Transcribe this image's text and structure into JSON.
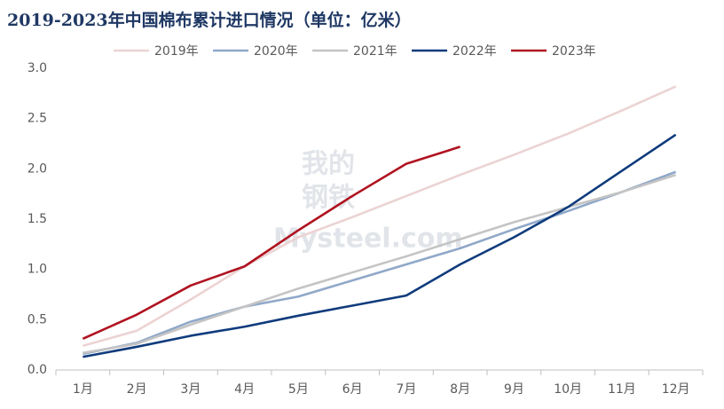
{
  "chart_data": {
    "type": "line",
    "title": "2019-2023年中国棉布累计进口情况（单位：亿米）",
    "watermark": [
      "我的",
      "钢铁",
      "Mysteel.com"
    ],
    "categories": [
      "1月",
      "2月",
      "3月",
      "4月",
      "5月",
      "6月",
      "7月",
      "8月",
      "9月",
      "10月",
      "11月",
      "12月"
    ],
    "series": [
      {
        "name": "2019年",
        "color": "#ecd3d3",
        "values": [
          0.24,
          0.39,
          0.7,
          1.03,
          1.32,
          1.52,
          1.73,
          1.94,
          2.14,
          2.35,
          2.58,
          2.82
        ]
      },
      {
        "name": "2020年",
        "color": "#8fa8c9",
        "values": [
          0.16,
          0.27,
          0.48,
          0.63,
          0.73,
          0.89,
          1.05,
          1.21,
          1.4,
          1.58,
          1.77,
          1.97
        ]
      },
      {
        "name": "2021年",
        "color": "#c4c4c4",
        "values": [
          0.17,
          0.26,
          0.45,
          0.63,
          0.81,
          0.97,
          1.13,
          1.3,
          1.47,
          1.62,
          1.77,
          1.94
        ]
      },
      {
        "name": "2022年",
        "color": "#0f3b7c",
        "values": [
          0.13,
          0.23,
          0.34,
          0.43,
          0.54,
          0.64,
          0.74,
          1.05,
          1.32,
          1.62,
          1.98,
          2.34
        ]
      },
      {
        "name": "2023年",
        "color": "#b01320",
        "values": [
          0.31,
          0.55,
          0.84,
          1.03,
          1.39,
          1.73,
          2.05,
          2.22,
          null,
          null,
          null,
          null
        ]
      }
    ],
    "ylim": [
      0,
      3
    ],
    "yticks": [
      {
        "value": 0,
        "label": "0.0"
      },
      0.5,
      {
        "value": 1,
        "label": "1.0"
      },
      1.5,
      {
        "value": 2,
        "label": "2.0"
      },
      2.5,
      {
        "value": 3,
        "label": "3.0"
      }
    ],
    "legend": "top",
    "grid": false
  }
}
